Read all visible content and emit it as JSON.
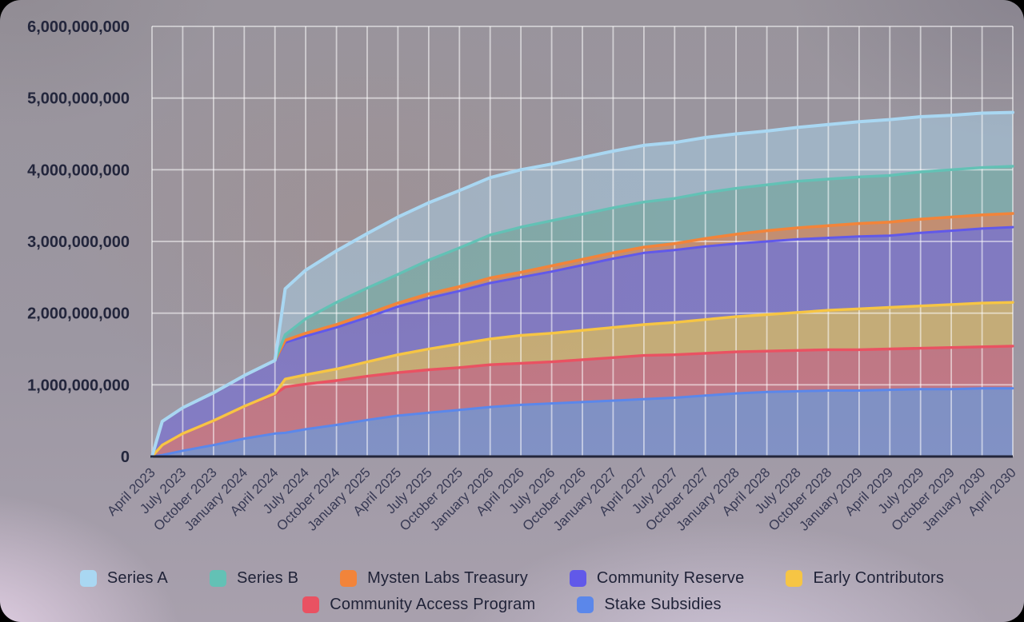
{
  "chart_data": {
    "type": "area",
    "stacked": true,
    "title": "",
    "xlabel": "",
    "ylabel": "",
    "grid": true,
    "legend_position": "bottom",
    "ylim": [
      0,
      6000000000
    ],
    "values_unit": "billions_of_tokens",
    "y_tick_labels": [
      "0",
      "1,000,000,000",
      "2,000,000,000",
      "3,000,000,000",
      "4,000,000,000",
      "5,000,000,000",
      "6,000,000,000"
    ],
    "x_tick_labels": [
      "April 2023",
      "July 2023",
      "October 2023",
      "January 2024",
      "April 2024",
      "July 2024",
      "October 2024",
      "January 2025",
      "April 2025",
      "July 2025",
      "October 2025",
      "January 2026",
      "April 2026",
      "July 2026",
      "October 2026",
      "January 2027",
      "April 2027",
      "July 2027",
      "October 2027",
      "January 2028",
      "April 2028",
      "July 2028",
      "October 2028",
      "January 2029",
      "April 2029",
      "July 2029",
      "October 2029",
      "January 2030",
      "April 2030"
    ],
    "x_months_since_start": [
      0,
      1,
      3,
      6,
      9,
      12,
      13,
      15,
      18,
      21,
      24,
      27,
      30,
      33,
      36,
      39,
      42,
      45,
      48,
      51,
      54,
      57,
      60,
      63,
      66,
      69,
      72,
      75,
      78,
      81,
      84
    ],
    "x_total_months": 84,
    "series": [
      {
        "name": "Stake Subsidies",
        "color": "#5b87ea",
        "line_width": 3.0,
        "values": [
          0,
          0.02,
          0.08,
          0.16,
          0.25,
          0.32,
          0.33,
          0.38,
          0.44,
          0.51,
          0.57,
          0.61,
          0.65,
          0.69,
          0.72,
          0.74,
          0.76,
          0.78,
          0.8,
          0.82,
          0.85,
          0.88,
          0.9,
          0.91,
          0.92,
          0.92,
          0.93,
          0.94,
          0.94,
          0.95,
          0.95
        ]
      },
      {
        "name": "Community Access Program",
        "color": "#e95262",
        "line_width": 3.4,
        "values": [
          0,
          0.14,
          0.24,
          0.34,
          0.45,
          0.55,
          0.64,
          0.63,
          0.62,
          0.61,
          0.6,
          0.6,
          0.59,
          0.59,
          0.58,
          0.58,
          0.59,
          0.6,
          0.61,
          0.6,
          0.59,
          0.58,
          0.57,
          0.57,
          0.57,
          0.57,
          0.57,
          0.57,
          0.58,
          0.58,
          0.59
        ]
      },
      {
        "name": "Early Contributors",
        "color": "#f6c544",
        "line_width": 3.4,
        "values": [
          0,
          0,
          0,
          0,
          0,
          0.01,
          0.11,
          0.13,
          0.16,
          0.2,
          0.25,
          0.29,
          0.33,
          0.36,
          0.39,
          0.4,
          0.41,
          0.42,
          0.43,
          0.45,
          0.47,
          0.49,
          0.51,
          0.53,
          0.55,
          0.57,
          0.58,
          0.59,
          0.6,
          0.61,
          0.61
        ]
      },
      {
        "name": "Community Reserve",
        "color": "#6159e9",
        "line_width": 3.0,
        "values": [
          0,
          0.33,
          0.36,
          0.39,
          0.43,
          0.46,
          0.51,
          0.54,
          0.58,
          0.62,
          0.67,
          0.71,
          0.74,
          0.78,
          0.81,
          0.86,
          0.91,
          0.96,
          1.0,
          1.01,
          1.02,
          1.02,
          1.02,
          1.02,
          1.01,
          1.01,
          1.0,
          1.02,
          1.03,
          1.04,
          1.05
        ]
      },
      {
        "name": "Mysten Labs Treasury",
        "color": "#f2843a",
        "line_width": 3.6,
        "values": [
          0,
          0,
          0,
          0,
          0,
          0,
          0.03,
          0.04,
          0.04,
          0.05,
          0.05,
          0.06,
          0.06,
          0.07,
          0.07,
          0.08,
          0.08,
          0.08,
          0.08,
          0.09,
          0.11,
          0.13,
          0.15,
          0.16,
          0.17,
          0.18,
          0.19,
          0.19,
          0.19,
          0.19,
          0.19
        ]
      },
      {
        "name": "Series B",
        "color": "#63c1b5",
        "line_width": 3.4,
        "values": [
          0,
          0,
          0,
          0,
          0,
          0,
          0.08,
          0.2,
          0.31,
          0.36,
          0.4,
          0.47,
          0.54,
          0.6,
          0.63,
          0.63,
          0.63,
          0.63,
          0.63,
          0.63,
          0.64,
          0.64,
          0.64,
          0.65,
          0.65,
          0.65,
          0.65,
          0.66,
          0.66,
          0.66,
          0.66
        ]
      },
      {
        "name": "Series A",
        "color": "#a9d7f2",
        "line_width": 4.0,
        "values": [
          0,
          0,
          0,
          0,
          0,
          0,
          0.64,
          0.68,
          0.72,
          0.76,
          0.8,
          0.8,
          0.8,
          0.8,
          0.8,
          0.79,
          0.79,
          0.79,
          0.79,
          0.78,
          0.77,
          0.76,
          0.75,
          0.75,
          0.76,
          0.77,
          0.78,
          0.77,
          0.76,
          0.76,
          0.75
        ]
      }
    ],
    "legend_rows": [
      [
        "Series A",
        "Series B",
        "Mysten Labs Treasury",
        "Community Reserve",
        "Early Contributors"
      ],
      [
        "Community Access Program",
        "Stake Subsidies"
      ]
    ],
    "colors": {
      "y_axis_text": "#23263c",
      "x_axis_text": "#383a54",
      "legend_text": "#1f2237",
      "gridline": "#ffffff",
      "baseline": "#23263a",
      "fill_opacity": 0.45
    }
  }
}
